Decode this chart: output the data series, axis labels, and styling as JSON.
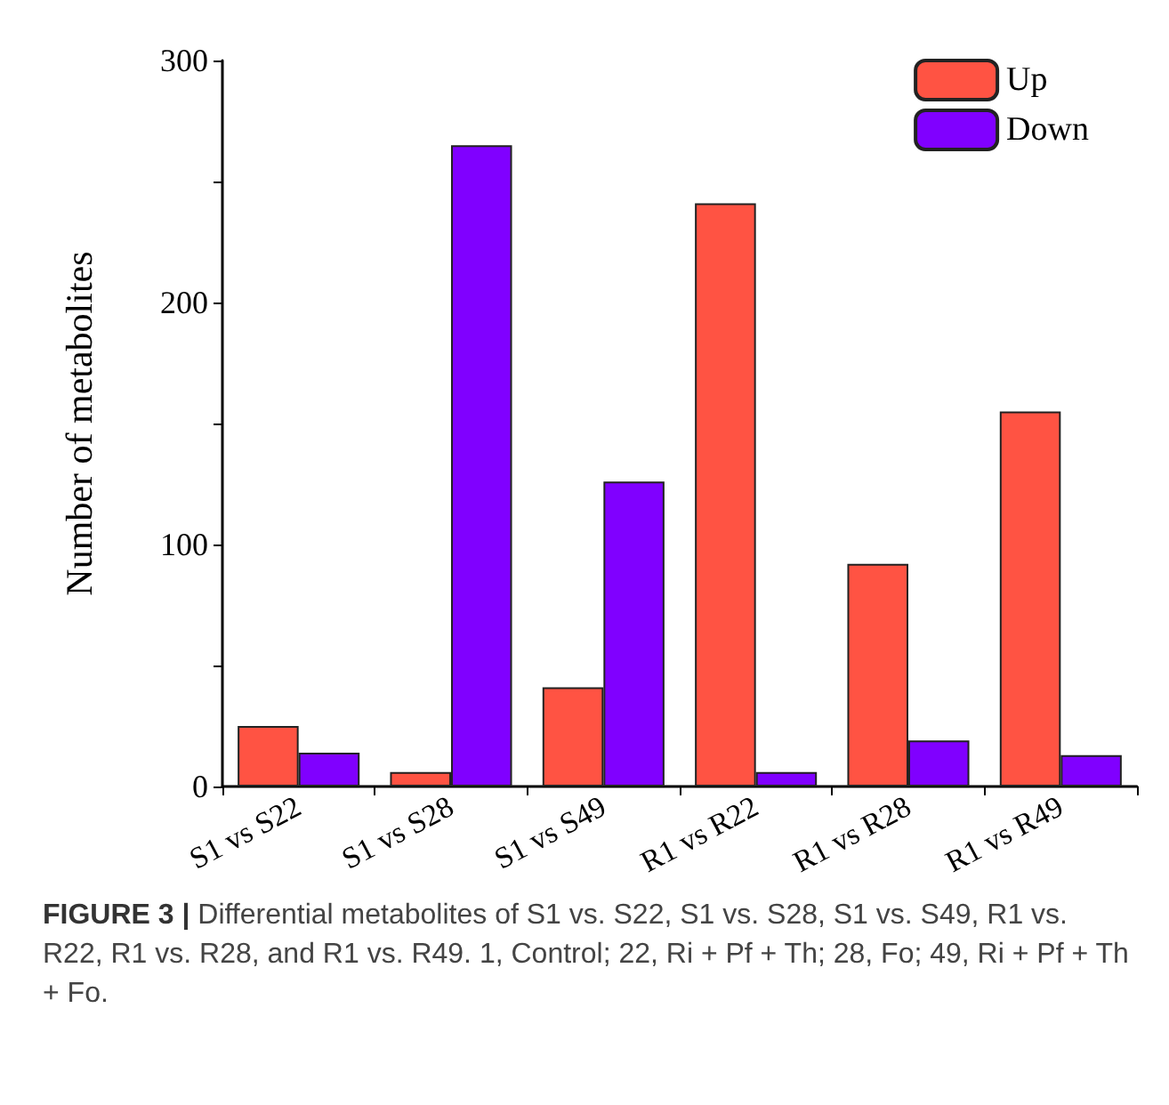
{
  "chart_data": {
    "type": "bar",
    "ylabel": "Number of metabolites",
    "categories": [
      "S1 vs S22",
      "S1 vs S28",
      "S1 vs S49",
      "R1 vs R22",
      "R1 vs R28",
      "R1 vs R49"
    ],
    "series": [
      {
        "name": "Up",
        "color": "#ff5343",
        "values": [
          25,
          6,
          41,
          241,
          92,
          155
        ]
      },
      {
        "name": "Down",
        "color": "#8000ff",
        "values": [
          14,
          265,
          126,
          6,
          19,
          13
        ]
      }
    ],
    "ylim": [
      0,
      300
    ],
    "yticks": [
      0,
      {
        "value": 50,
        "label": null
      },
      100,
      {
        "value": 150,
        "label": null
      },
      200,
      {
        "value": 250,
        "label": null
      },
      300
    ],
    "grid": false,
    "legend": "top right",
    "annotations": [
      "FIGURE 3 | Differential metabolites of S1 vs. S22, S1 vs. S28, S1 vs. S49, R1 vs. R22, R1 vs. R28, and R1 vs. R49. 1, Control; 22, Ri + Pf + Th; 28, Fo; 49, Ri + Pf + Th + Fo."
    ]
  }
}
